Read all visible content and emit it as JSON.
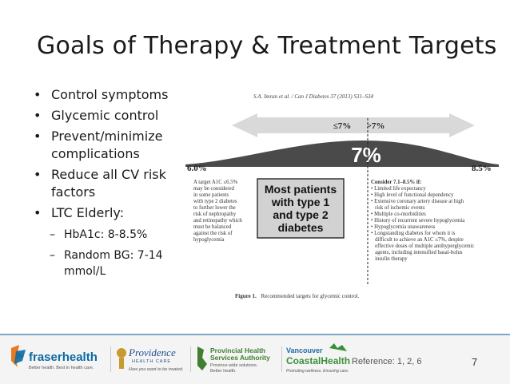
{
  "title": "Goals of Therapy & Treatment Targets",
  "bullets": [
    "Control symptoms",
    "Glycemic control",
    "Prevent/minimize complications",
    "Reduce all CV risk factors",
    "LTC Elderly:"
  ],
  "subbullets": [
    "HbA1c: 8-8.5%",
    "Random BG: 7-14 mmol/L"
  ],
  "figure": {
    "citation": "S.A. Imran et al. / Can J Diabetes 37 (2013) S31–S34",
    "left_arrow": "≤7%",
    "right_arrow": ">7%",
    "center_value": "7%",
    "left_value": "6.0%",
    "right_value": "8.5%",
    "left_text": [
      "A target A1C ≤6.5%",
      "may be considered",
      "in some patients",
      "with type 2 diabetes",
      "to further lower the",
      "risk of nephropathy",
      "and retinopathy which",
      "must be balanced",
      "against the risk of",
      "hypoglycemia"
    ],
    "center_box": [
      "Most patients",
      "with type 1",
      "and type 2",
      "diabetes"
    ],
    "right_heading": "Consider 7.1–8.5% if:",
    "right_items": [
      "• Limited life expectancy",
      "• High level of functional dependency",
      "• Extensive coronary artery disease at high",
      "   risk of ischemic events",
      "• Multiple co-morbidities",
      "• History of recurrent severe hypoglycemia",
      "• Hypoglycemia unawareness",
      "• Longstanding diabetes for whom it is",
      "   difficult to achieve an A1C ≤7%, despite",
      "   effective doses of multiple antihyperglycemic",
      "   agents, including intensified basal-bolus",
      "   insulin therapy"
    ],
    "caption_bold": "Figure 1.",
    "caption": "Recommended targets for glycemic control."
  },
  "footer": {
    "logos": [
      {
        "name": "fraserhealth",
        "tagline": "Better health. Best in health care."
      },
      {
        "name": "Providence",
        "sub": "HEALTH CARE",
        "tagline": "How you want to be treated."
      },
      {
        "name1": "Provincial Health",
        "name2": "Services Authority",
        "tagline1": "Province-wide solutions.",
        "tagline2": "Better health."
      },
      {
        "name1": "Vancouver",
        "name2": "CoastalHealth",
        "tagline": "Promoting wellness. Ensuring care."
      }
    ],
    "reference": "Reference:  1, 2, 6",
    "page_number": "7",
    "colors": {
      "fraser": "#0b6aa2",
      "fraser_orange": "#e67a1e",
      "vch_green": "#3b8f3a",
      "vch_blue": "#1f6aa8",
      "phsa_green": "#3f7f2f"
    }
  }
}
